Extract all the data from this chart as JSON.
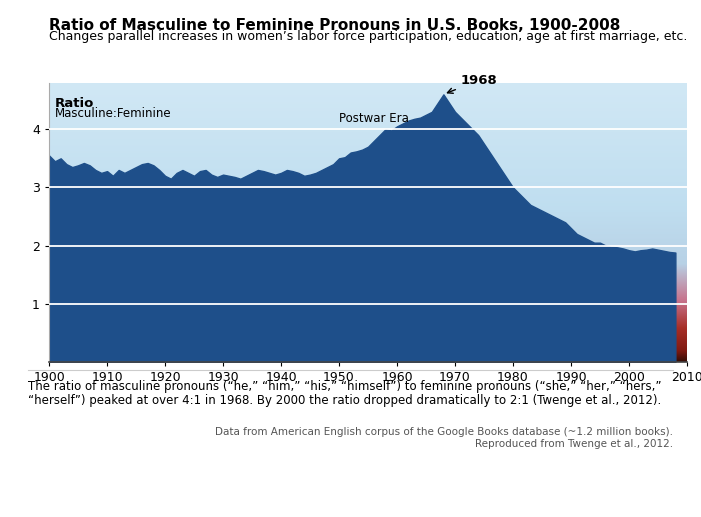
{
  "title": "Ratio of Masculine to Feminine Pronouns in U.S. Books, 1900-2008",
  "subtitle": "Changes parallel increases in women’s labor force participation, education, age at first marriage, etc.",
  "ylabel_line1": "Ratio",
  "ylabel_line2": "Masculine:Feminine",
  "xlim": [
    1900,
    2010
  ],
  "ylim": [
    0,
    4.8
  ],
  "yticks": [
    1,
    2,
    3,
    4
  ],
  "xticks": [
    1900,
    1910,
    1920,
    1930,
    1940,
    1950,
    1960,
    1970,
    1980,
    1990,
    2000,
    2010
  ],
  "annotation_1968": "1968",
  "annotation_postwar": "Postwar Era",
  "footer_line1": "The ratio of masculine pronouns (“he,” “him,” “his,” “himself”) to feminine pronouns (“she,” “her,” “hers,”",
  "footer_line2": "“herself”) peaked at over 4:1 in 1968. By 2000 the ratio dropped dramatically to 2:1 (Twenge et al., 2012).",
  "source_line1": "Data from American English corpus of the Google Books database (~1.2 million books).",
  "source_line2": "Reproduced from Twenge et al., 2012.",
  "years": [
    1900,
    1901,
    1902,
    1903,
    1904,
    1905,
    1906,
    1907,
    1908,
    1909,
    1910,
    1911,
    1912,
    1913,
    1914,
    1915,
    1916,
    1917,
    1918,
    1919,
    1920,
    1921,
    1922,
    1923,
    1924,
    1925,
    1926,
    1927,
    1928,
    1929,
    1930,
    1931,
    1932,
    1933,
    1934,
    1935,
    1936,
    1937,
    1938,
    1939,
    1940,
    1941,
    1942,
    1943,
    1944,
    1945,
    1946,
    1947,
    1948,
    1949,
    1950,
    1951,
    1952,
    1953,
    1954,
    1955,
    1956,
    1957,
    1958,
    1959,
    1960,
    1961,
    1962,
    1963,
    1964,
    1965,
    1966,
    1967,
    1968,
    1969,
    1970,
    1971,
    1972,
    1973,
    1974,
    1975,
    1976,
    1977,
    1978,
    1979,
    1980,
    1981,
    1982,
    1983,
    1984,
    1985,
    1986,
    1987,
    1988,
    1989,
    1990,
    1991,
    1992,
    1993,
    1994,
    1995,
    1996,
    1997,
    1998,
    1999,
    2000,
    2001,
    2002,
    2003,
    2004,
    2005,
    2006,
    2007,
    2008
  ],
  "values": [
    3.55,
    3.45,
    3.5,
    3.4,
    3.35,
    3.38,
    3.42,
    3.38,
    3.3,
    3.25,
    3.28,
    3.2,
    3.3,
    3.25,
    3.3,
    3.35,
    3.4,
    3.42,
    3.38,
    3.3,
    3.2,
    3.15,
    3.25,
    3.3,
    3.25,
    3.2,
    3.28,
    3.3,
    3.22,
    3.18,
    3.22,
    3.2,
    3.18,
    3.15,
    3.2,
    3.25,
    3.3,
    3.28,
    3.25,
    3.22,
    3.25,
    3.3,
    3.28,
    3.25,
    3.2,
    3.22,
    3.25,
    3.3,
    3.35,
    3.4,
    3.5,
    3.52,
    3.6,
    3.62,
    3.65,
    3.7,
    3.8,
    3.9,
    4.0,
    3.98,
    4.05,
    4.1,
    4.15,
    4.18,
    4.2,
    4.25,
    4.3,
    4.45,
    4.6,
    4.45,
    4.3,
    4.2,
    4.1,
    4.0,
    3.9,
    3.75,
    3.6,
    3.45,
    3.3,
    3.15,
    3.0,
    2.9,
    2.8,
    2.7,
    2.65,
    2.6,
    2.55,
    2.5,
    2.45,
    2.4,
    2.3,
    2.2,
    2.15,
    2.1,
    2.05,
    2.05,
    2.0,
    1.98,
    1.97,
    1.95,
    1.92,
    1.9,
    1.92,
    1.93,
    1.95,
    1.93,
    1.91,
    1.89,
    1.88
  ],
  "bg_color": "#ffffff",
  "fill_color": "#1e4f8a",
  "title_fontsize": 11,
  "subtitle_fontsize": 9,
  "tick_fontsize": 9
}
